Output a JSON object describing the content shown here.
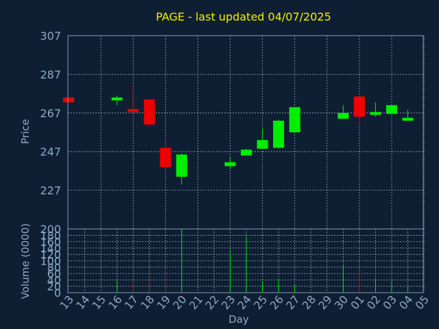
{
  "chart_data": [
    {
      "type": "candlestick",
      "title": "PAGE - last updated 04/07/2025",
      "ylabel": "Price",
      "xlabel": "Day",
      "ylim": [
        207,
        307
      ],
      "y_ticks": [
        307,
        287,
        267,
        247,
        227
      ],
      "grid": true,
      "colors": {
        "up": "#00ee00",
        "down": "#ee0000",
        "background": "#0f1f33",
        "plot_border": "#7f9bb8",
        "grid": "#c8d4e0",
        "title": "#f2f200",
        "text": "#8fa9c4"
      },
      "categories": [
        "13",
        "14",
        "15",
        "16",
        "17",
        "18",
        "19",
        "20",
        "21",
        "22",
        "23",
        "24",
        "25",
        "26",
        "27",
        "28",
        "29",
        "30",
        "01",
        "02",
        "03",
        "04",
        "05"
      ],
      "candles": [
        {
          "day": "13",
          "open": 275.0,
          "high": 275.0,
          "low": 272.5,
          "close": 272.5
        },
        {
          "day": "16",
          "open": 273.5,
          "high": 276.0,
          "low": 271.0,
          "close": 275.0
        },
        {
          "day": "17",
          "open": 269.0,
          "high": 281.0,
          "low": 267.0,
          "close": 267.5
        },
        {
          "day": "18",
          "open": 274.0,
          "high": 274.0,
          "low": 260.0,
          "close": 261.0
        },
        {
          "day": "19",
          "open": 249.0,
          "high": 255.0,
          "low": 238.0,
          "close": 239.0
        },
        {
          "day": "20",
          "open": 234.0,
          "high": 246.0,
          "low": 230.0,
          "close": 245.5
        },
        {
          "day": "23",
          "open": 239.5,
          "high": 244.0,
          "low": 238.0,
          "close": 241.5
        },
        {
          "day": "24",
          "open": 245.0,
          "high": 248.5,
          "low": 245.0,
          "close": 248.0
        },
        {
          "day": "25",
          "open": 248.5,
          "high": 259.0,
          "low": 248.5,
          "close": 253.0
        },
        {
          "day": "26",
          "open": 249.0,
          "high": 263.5,
          "low": 248.5,
          "close": 263.0
        },
        {
          "day": "27",
          "open": 257.0,
          "high": 270.0,
          "low": 256.5,
          "close": 270.0
        },
        {
          "day": "30",
          "open": 264.0,
          "high": 271.0,
          "low": 264.0,
          "close": 267.0
        },
        {
          "day": "01",
          "open": 275.5,
          "high": 275.5,
          "low": 261.0,
          "close": 265.0
        },
        {
          "day": "02",
          "open": 266.0,
          "high": 272.5,
          "low": 265.0,
          "close": 267.5
        },
        {
          "day": "03",
          "open": 266.5,
          "high": 271.0,
          "low": 266.5,
          "close": 271.0
        },
        {
          "day": "04",
          "open": 263.0,
          "high": 268.5,
          "low": 263.0,
          "close": 264.5
        }
      ]
    },
    {
      "type": "bar",
      "ylabel": "Volume (0000)",
      "xlabel": "Day",
      "ylim": [
        0,
        200
      ],
      "y_ticks": [
        200,
        180,
        160,
        140,
        120,
        100,
        80,
        60,
        40,
        20,
        0
      ],
      "grid": true,
      "categories": [
        "13",
        "14",
        "15",
        "16",
        "17",
        "18",
        "19",
        "20",
        "21",
        "22",
        "23",
        "24",
        "25",
        "26",
        "27",
        "28",
        "29",
        "30",
        "01",
        "02",
        "03",
        "04",
        "05"
      ],
      "volumes": [
        {
          "day": "16",
          "value": 38,
          "color": "up"
        },
        {
          "day": "17",
          "value": 26,
          "color": "down"
        },
        {
          "day": "18",
          "value": 50,
          "color": "down"
        },
        {
          "day": "19",
          "value": 70,
          "color": "down"
        },
        {
          "day": "20",
          "value": 197,
          "color": "up"
        },
        {
          "day": "23",
          "value": 133,
          "color": "up"
        },
        {
          "day": "24",
          "value": 176,
          "color": "up"
        },
        {
          "day": "25",
          "value": 36,
          "color": "up"
        },
        {
          "day": "26",
          "value": 40,
          "color": "up"
        },
        {
          "day": "27",
          "value": 24,
          "color": "up"
        },
        {
          "day": "30",
          "value": 87,
          "color": "up"
        },
        {
          "day": "01",
          "value": 60,
          "color": "down"
        },
        {
          "day": "02",
          "value": 40,
          "color": "up"
        },
        {
          "day": "03",
          "value": 38,
          "color": "up"
        },
        {
          "day": "04",
          "value": 20,
          "color": "up"
        }
      ]
    }
  ]
}
